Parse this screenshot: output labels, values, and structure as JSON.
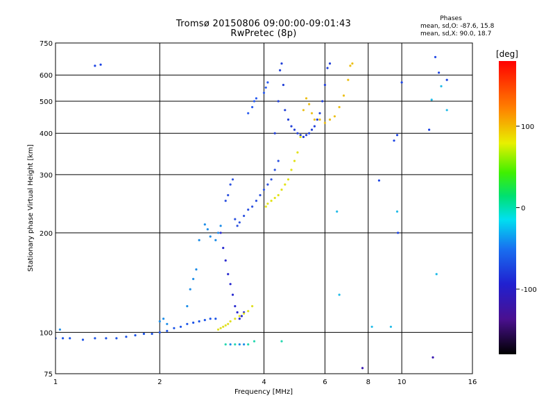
{
  "header": {
    "title_line1": "Tromsø 20150806 09:00:00-09:01:43",
    "title_line2": "RwPretec (8p)"
  },
  "phases": {
    "title": "Phases",
    "o_line": "mean, sd,O: -87.6, 15.8",
    "x_line": "mean, sd,X:  90.0, 18.7"
  },
  "colorbar": {
    "unit_label": "[deg]",
    "ticks": [
      "100",
      "0",
      "-100"
    ],
    "tick_values": [
      100,
      0,
      -100
    ],
    "range": [
      -180,
      180
    ]
  },
  "chart_data": {
    "type": "scatter",
    "title": "Tromsø 20150806 09:00:00-09:01:43",
    "subtitle": "RwPretec (8p)",
    "xlabel": "Frequency [MHz]",
    "ylabel": "Stationary phase Virtual Height [km]",
    "xscale": "log",
    "yscale": "log",
    "xlim": [
      1,
      16
    ],
    "ylim": [
      75,
      750
    ],
    "x_ticks": [
      1,
      2,
      4,
      6,
      8,
      10,
      16
    ],
    "x_tick_labels": [
      "1",
      "2",
      "4",
      "6",
      "8",
      "10",
      "16"
    ],
    "y_ticks": [
      75,
      100,
      200,
      300,
      400,
      500,
      600,
      750
    ],
    "y_tick_labels": [
      "75",
      "100",
      "200",
      "300",
      "400",
      "500",
      "600",
      "750"
    ],
    "grid": true,
    "color_encodes": "phase [deg]",
    "series": [
      {
        "color": "#1d55e8",
        "phase": -110,
        "x": [
          1.0,
          1.05,
          1.1,
          1.2,
          1.3,
          1.4,
          1.5,
          1.6,
          1.7,
          1.8,
          1.9,
          2.0,
          2.1,
          2.2,
          2.3,
          2.4,
          2.5,
          2.6,
          2.7,
          2.8,
          2.9
        ],
        "y": [
          96,
          96,
          96,
          95,
          96,
          96,
          96,
          97,
          98,
          99,
          99,
          100,
          101,
          103,
          104,
          106,
          107,
          108,
          109,
          110,
          110
        ]
      },
      {
        "color": "#1e8ee8",
        "phase": -75,
        "x": [
          1.03,
          2.0,
          2.05,
          2.1,
          2.4,
          2.45,
          2.5,
          2.55,
          2.6,
          2.7,
          2.75,
          2.8,
          2.9,
          2.95,
          3.0,
          3.2,
          3.4,
          3.5
        ],
        "y": [
          102,
          108,
          110,
          106,
          120,
          135,
          145,
          155,
          190,
          212,
          205,
          195,
          190,
          200,
          210,
          92,
          92,
          92
        ]
      },
      {
        "color": "#2a2cd0",
        "phase": -130,
        "x": [
          3.0,
          3.05,
          3.1,
          3.15,
          3.2,
          3.25,
          3.3,
          3.35,
          3.4,
          3.45,
          3.5
        ],
        "y": [
          200,
          180,
          165,
          150,
          140,
          130,
          120,
          115,
          110,
          112,
          115
        ]
      },
      {
        "color": "#2f54e0",
        "phase": -105,
        "x": [
          3.1,
          3.15,
          3.2,
          3.25,
          3.3,
          3.35,
          3.4,
          3.5,
          3.6,
          3.7,
          3.8,
          3.9,
          4.0,
          4.1,
          4.2,
          4.3,
          4.4
        ],
        "y": [
          250,
          260,
          280,
          290,
          220,
          210,
          215,
          225,
          235,
          240,
          250,
          260,
          270,
          280,
          290,
          310,
          330
        ]
      },
      {
        "color": "#2442d8",
        "phase": -115,
        "x": [
          4.3,
          4.4,
          4.45,
          4.5,
          4.55,
          4.6,
          4.7,
          4.8,
          4.9,
          5.0,
          5.1,
          5.2,
          5.3,
          5.4,
          5.5,
          5.6,
          5.7,
          5.8,
          5.9,
          6.0,
          6.1,
          6.2
        ],
        "y": [
          400,
          500,
          620,
          650,
          560,
          470,
          440,
          420,
          410,
          400,
          395,
          390,
          395,
          400,
          410,
          420,
          440,
          460,
          500,
          560,
          630,
          650
        ]
      },
      {
        "color": "#2a5cf0",
        "phase": -100,
        "x": [
          3.6,
          3.7,
          3.75,
          3.8,
          4.0,
          4.05,
          4.1
        ],
        "y": [
          460,
          480,
          500,
          510,
          530,
          550,
          570
        ]
      },
      {
        "color": "#e2e21a",
        "phase": 100,
        "x": [
          4.05,
          4.1,
          4.2,
          4.3,
          4.4,
          4.5,
          4.6,
          4.7,
          4.8,
          4.9,
          5.0,
          5.1
        ],
        "y": [
          240,
          245,
          250,
          255,
          260,
          270,
          280,
          290,
          310,
          330,
          350,
          390
        ]
      },
      {
        "color": "#ecc01a",
        "phase": 110,
        "x": [
          5.2,
          5.3,
          5.4,
          5.5,
          5.6,
          5.8,
          6.0,
          6.2,
          6.4,
          6.6,
          6.8,
          7.0,
          7.1,
          7.2
        ],
        "y": [
          470,
          510,
          490,
          460,
          440,
          440,
          430,
          440,
          450,
          480,
          520,
          580,
          640,
          650
        ]
      },
      {
        "color": "#e0e024",
        "phase": 105,
        "x": [
          2.95,
          3.0,
          3.05,
          3.1,
          3.15,
          3.2,
          3.3,
          3.4,
          3.5,
          3.6,
          3.7
        ],
        "y": [
          102,
          103,
          104,
          105,
          106,
          108,
          110,
          112,
          114,
          116,
          120
        ]
      },
      {
        "color": "#1c44e4",
        "phase": -110,
        "x": [
          1.3,
          1.35,
          8.6,
          9.5,
          9.7,
          9.75,
          10.0,
          12.0,
          12.5,
          12.8,
          13.5
        ],
        "y": [
          640,
          645,
          288,
          380,
          395,
          200,
          570,
          410,
          680,
          610,
          580
        ]
      },
      {
        "color": "#22bce8",
        "phase": -55,
        "x": [
          6.5,
          6.6,
          8.2,
          9.3,
          9.7,
          12.2,
          12.6,
          13.0,
          13.5
        ],
        "y": [
          232,
          130,
          104,
          104,
          232,
          505,
          150,
          555,
          470
        ]
      },
      {
        "color": "#26d8b0",
        "phase": -35,
        "x": [
          3.1,
          3.3,
          3.6,
          3.75,
          4.5
        ],
        "y": [
          92,
          92,
          92,
          94,
          94
        ]
      },
      {
        "color": "#3a1ab0",
        "phase": -150,
        "x": [
          7.7,
          12.3
        ],
        "y": [
          78,
          84
        ]
      }
    ]
  }
}
